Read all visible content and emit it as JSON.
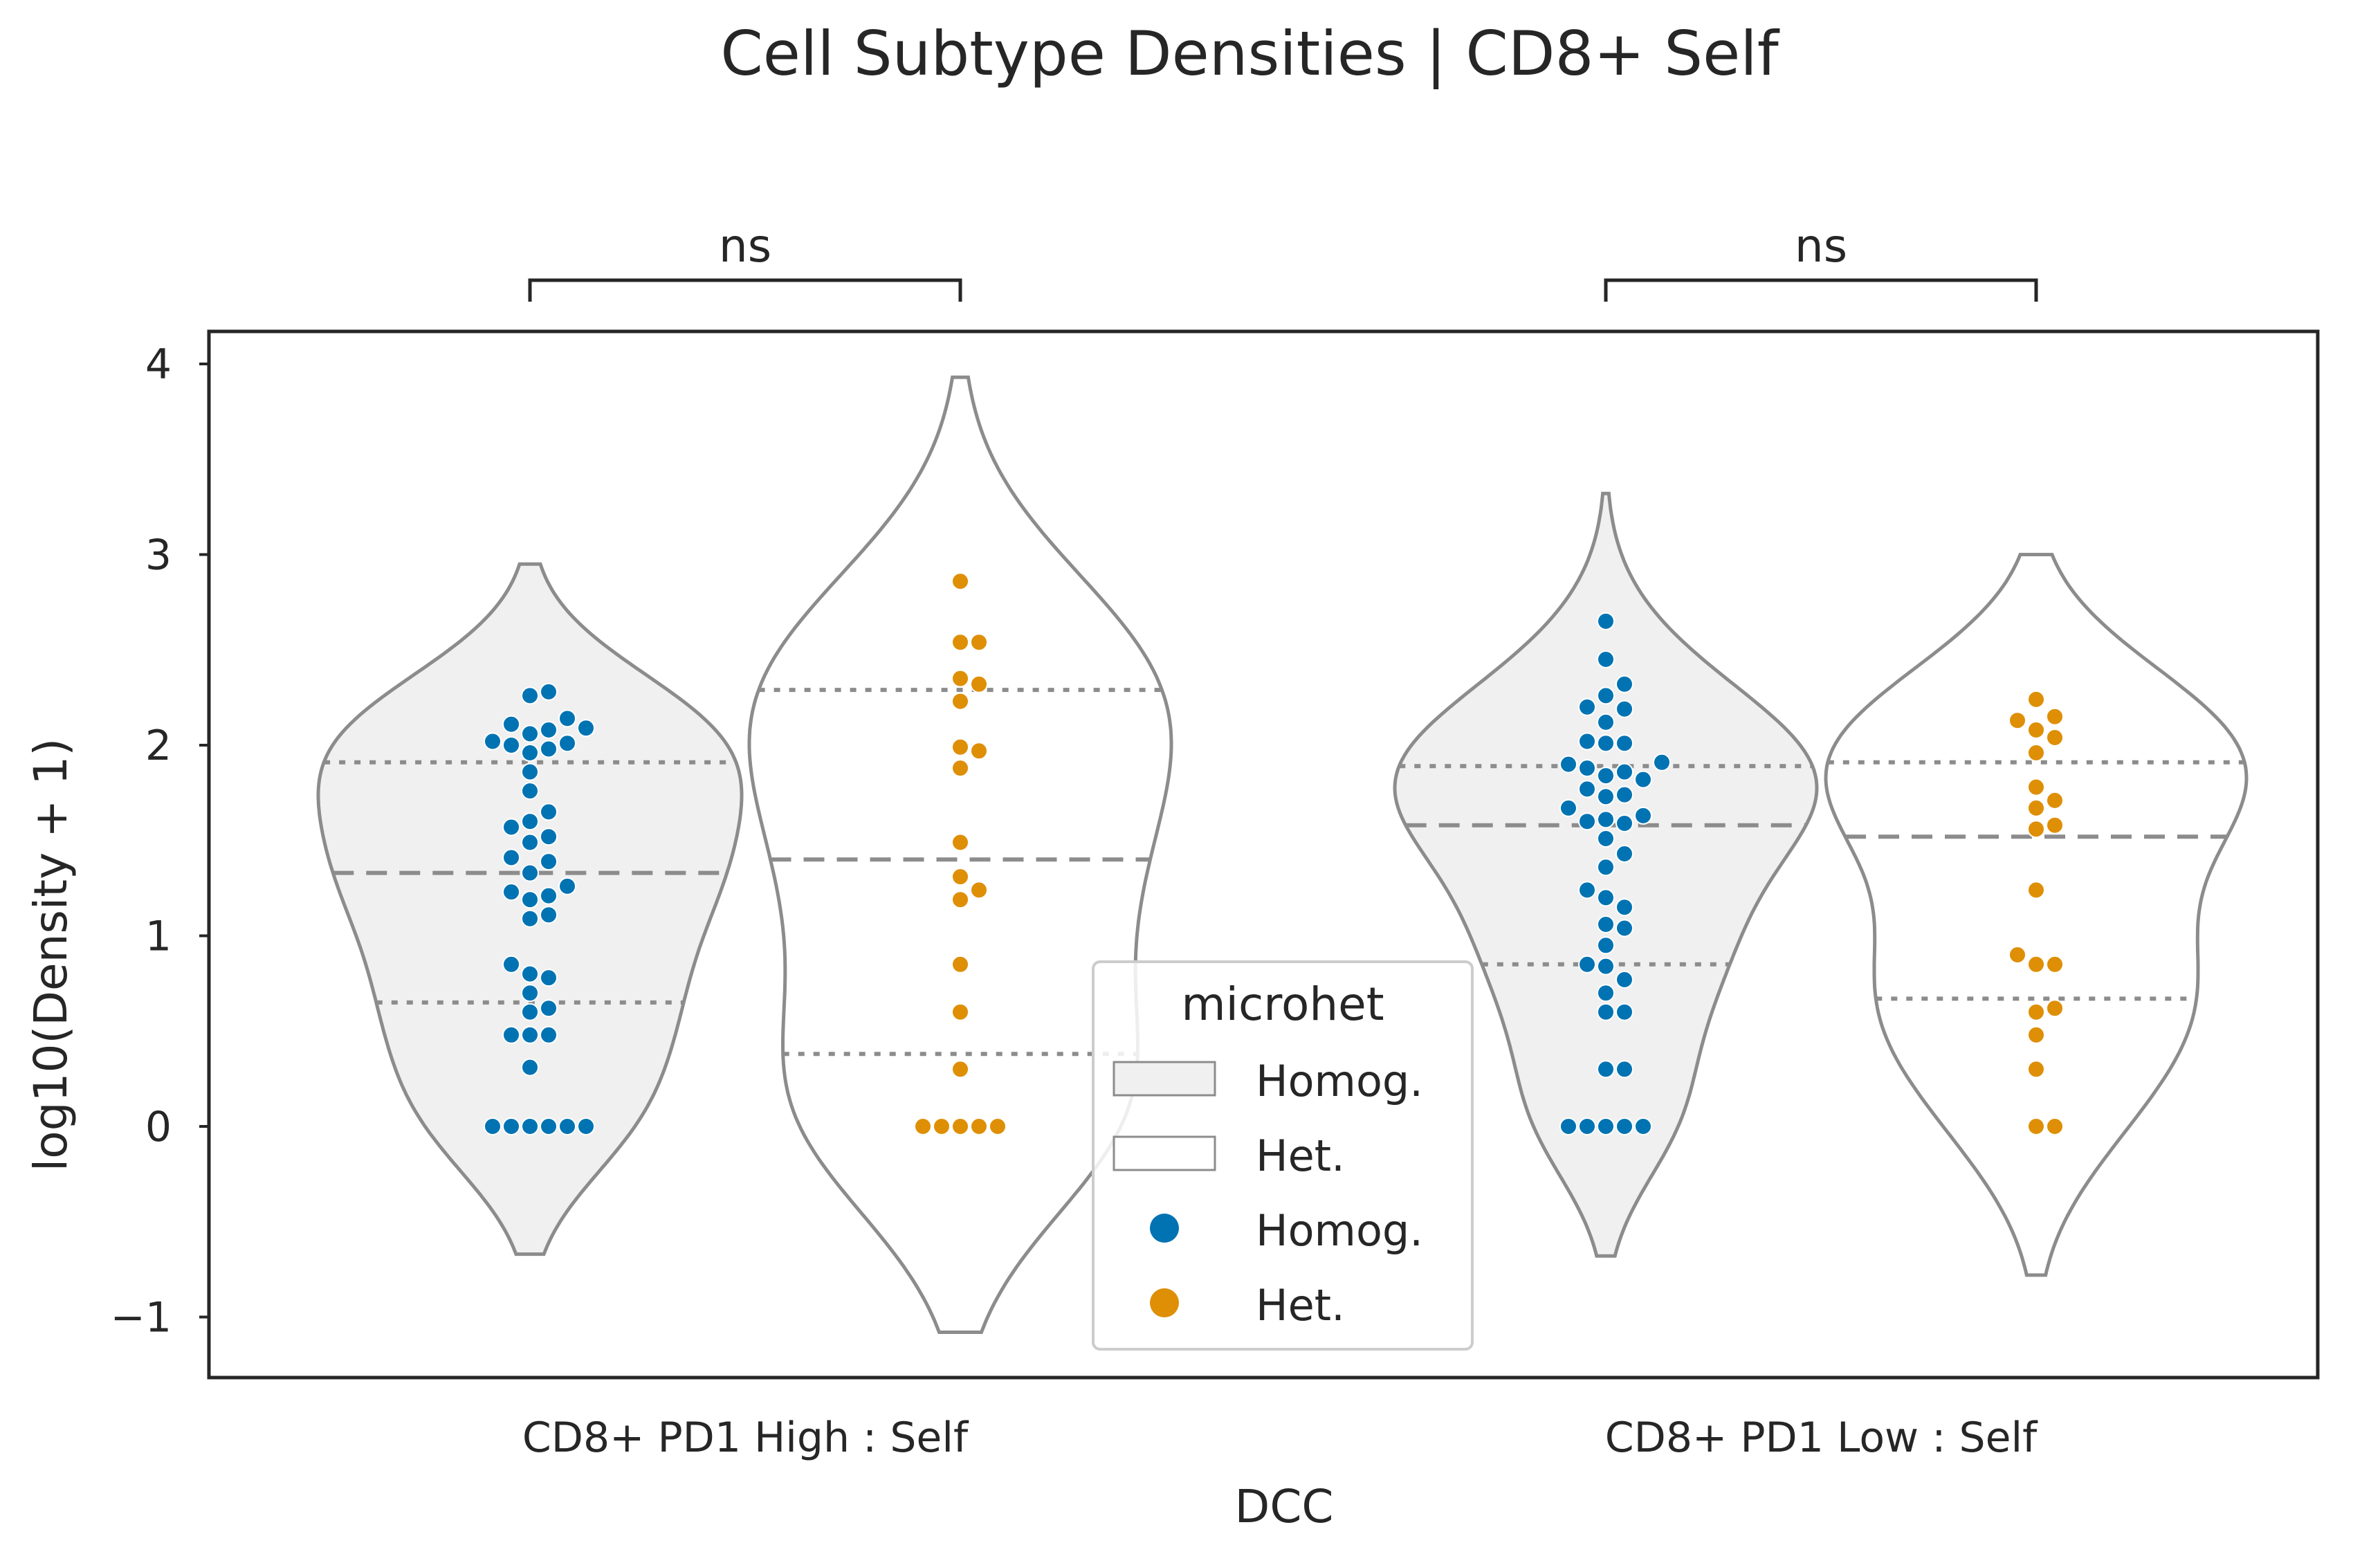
{
  "chart_data": {
    "type": "violin",
    "title": "Cell Subtype Densities | CD8+ Self",
    "xlabel": "DCC",
    "ylabel": "log10(Density + 1)",
    "categories": [
      "CD8+ PD1 High : Self",
      "CD8+ PD1 Low : Self"
    ],
    "hue_levels": [
      "Homog.",
      "Het."
    ],
    "ylim": [
      -1.35,
      4.2
    ],
    "yticks": [
      -1,
      0,
      1,
      2,
      3,
      4
    ],
    "ytick_labels": [
      "−1",
      "0",
      "1",
      "2",
      "3",
      "4"
    ],
    "grid": false,
    "legend": {
      "title": "microhet",
      "placement": "lower-center",
      "entries": [
        {
          "label": "Homog.",
          "kind": "violin",
          "fill": "#f0f0f0"
        },
        {
          "label": "Het.",
          "kind": "violin",
          "fill": "#ffffff"
        },
        {
          "label": "Homog.",
          "kind": "point",
          "color": "#0173b2"
        },
        {
          "label": "Het.",
          "kind": "point",
          "color": "#de8f05"
        }
      ]
    },
    "colors": {
      "Homog.": "#0173b2",
      "Het.": "#de8f05",
      "violin_edge": "#8c8c8c",
      "violin_fill_homog": "#f0f0f0",
      "violin_fill_het": "#ffffff",
      "axes": "#262626"
    },
    "annotations": [
      {
        "text": "ns",
        "between": [
          "CD8+ PD1 High : Self | Homog.",
          "CD8+ PD1 High : Self | Het."
        ]
      },
      {
        "text": "ns",
        "between": [
          "CD8+ PD1 Low : Self | Homog.",
          "CD8+ PD1 Low : Self | Het."
        ]
      }
    ],
    "violins": [
      {
        "category": "CD8+ PD1 High : Self",
        "hue": "Homog.",
        "range": [
          -0.67,
          2.95
        ],
        "quartiles": {
          "q1": 0.65,
          "median": 1.33,
          "q3": 1.91
        },
        "points": [
          2.28,
          2.26,
          2.14,
          2.11,
          2.09,
          2.08,
          2.06,
          2.02,
          2.01,
          2.0,
          1.98,
          1.96,
          1.86,
          1.76,
          1.65,
          1.6,
          1.57,
          1.52,
          1.49,
          1.41,
          1.39,
          1.33,
          1.26,
          1.23,
          1.21,
          1.19,
          1.11,
          1.09,
          0.85,
          0.8,
          0.78,
          0.7,
          0.62,
          0.6,
          0.48,
          0.48,
          0.48,
          0.31,
          0.0,
          0.0,
          0.0,
          0.0,
          0.0,
          0.0
        ]
      },
      {
        "category": "CD8+ PD1 High : Self",
        "hue": "Het.",
        "range": [
          -1.08,
          3.93
        ],
        "quartiles": {
          "q1": 0.38,
          "median": 1.4,
          "q3": 2.29
        },
        "points": [
          2.86,
          2.54,
          2.54,
          2.35,
          2.32,
          2.23,
          1.99,
          1.97,
          1.88,
          1.49,
          1.31,
          1.24,
          1.19,
          0.85,
          0.6,
          0.3,
          0.0,
          0.0,
          0.0,
          0.0,
          0.0
        ]
      },
      {
        "category": "CD8+ PD1 Low : Self",
        "hue": "Homog.",
        "range": [
          -0.68,
          3.32
        ],
        "quartiles": {
          "q1": 0.85,
          "median": 1.58,
          "q3": 1.89
        },
        "points": [
          2.65,
          2.45,
          2.32,
          2.26,
          2.2,
          2.19,
          2.12,
          2.02,
          2.01,
          2.01,
          1.91,
          1.9,
          1.88,
          1.86,
          1.84,
          1.82,
          1.77,
          1.74,
          1.73,
          1.67,
          1.63,
          1.61,
          1.6,
          1.59,
          1.51,
          1.43,
          1.36,
          1.24,
          1.2,
          1.15,
          1.06,
          1.04,
          0.95,
          0.85,
          0.84,
          0.77,
          0.7,
          0.6,
          0.6,
          0.3,
          0.3,
          0.0,
          0.0,
          0.0,
          0.0,
          0.0
        ]
      },
      {
        "category": "CD8+ PD1 Low : Self",
        "hue": "Het.",
        "range": [
          -0.78,
          3.0
        ],
        "quartiles": {
          "q1": 0.67,
          "median": 1.52,
          "q3": 1.91
        },
        "points": [
          2.24,
          2.15,
          2.13,
          2.08,
          2.04,
          1.96,
          1.78,
          1.71,
          1.67,
          1.58,
          1.56,
          1.24,
          0.9,
          0.85,
          0.85,
          0.62,
          0.6,
          0.48,
          0.3,
          0.0,
          0.0
        ]
      }
    ]
  }
}
